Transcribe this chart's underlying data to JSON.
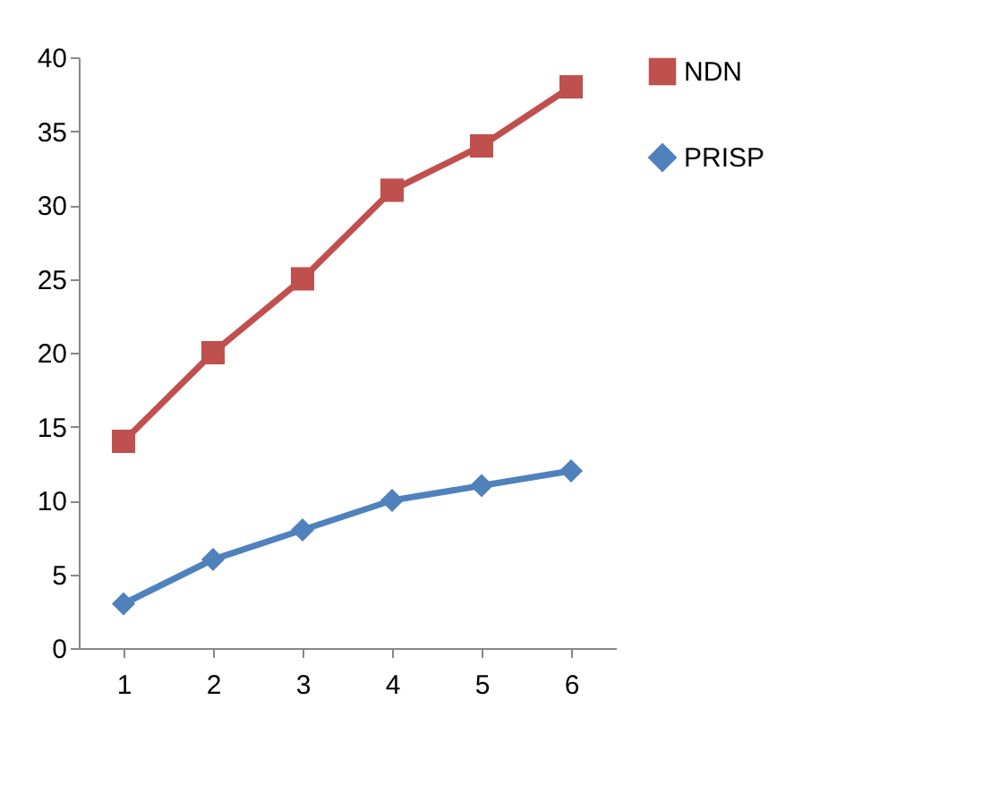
{
  "chart_data": {
    "type": "line",
    "categories": [
      "1",
      "2",
      "3",
      "4",
      "5",
      "6"
    ],
    "series": [
      {
        "name": "NDN",
        "color": "#c0504d",
        "marker": "square",
        "values": [
          14,
          20,
          25,
          31,
          34,
          38
        ]
      },
      {
        "name": "PRISP",
        "color": "#4f81bd",
        "marker": "diamond",
        "values": [
          3,
          6,
          8,
          10,
          11,
          12
        ]
      }
    ],
    "ylim": [
      0,
      40
    ],
    "yticks": [
      0,
      5,
      10,
      15,
      20,
      25,
      30,
      35,
      40
    ],
    "grid": false,
    "legend": "right",
    "line_style": "solid"
  }
}
